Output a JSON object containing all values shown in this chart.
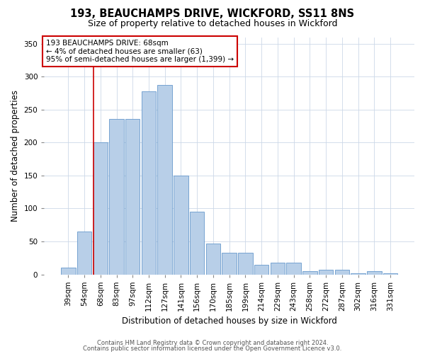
{
  "title1": "193, BEAUCHAMPS DRIVE, WICKFORD, SS11 8NS",
  "title2": "Size of property relative to detached houses in Wickford",
  "xlabel": "Distribution of detached houses by size in Wickford",
  "ylabel": "Number of detached properties",
  "categories": [
    "39sqm",
    "54sqm",
    "68sqm",
    "83sqm",
    "97sqm",
    "112sqm",
    "127sqm",
    "141sqm",
    "156sqm",
    "170sqm",
    "185sqm",
    "199sqm",
    "214sqm",
    "229sqm",
    "243sqm",
    "258sqm",
    "272sqm",
    "287sqm",
    "302sqm",
    "316sqm",
    "331sqm"
  ],
  "values": [
    10,
    65,
    200,
    236,
    236,
    278,
    288,
    150,
    95,
    47,
    33,
    33,
    15,
    18,
    18,
    5,
    7,
    7,
    2,
    5,
    2
  ],
  "bar_color": "#b8cfe8",
  "bar_edge_color": "#6699cc",
  "highlight_index": 2,
  "highlight_color": "#cc0000",
  "annotation_text": "193 BEAUCHAMPS DRIVE: 68sqm\n← 4% of detached houses are smaller (63)\n95% of semi-detached houses are larger (1,399) →",
  "annotation_box_color": "#ffffff",
  "annotation_box_edge_color": "#cc0000",
  "ylim": [
    0,
    360
  ],
  "yticks": [
    0,
    50,
    100,
    150,
    200,
    250,
    300,
    350
  ],
  "footer1": "Contains HM Land Registry data © Crown copyright and database right 2024.",
  "footer2": "Contains public sector information licensed under the Open Government Licence v3.0.",
  "bg_color": "#ffffff",
  "grid_color": "#ccd8e8",
  "title_fontsize": 10.5,
  "subtitle_fontsize": 9,
  "axis_label_fontsize": 8.5,
  "tick_fontsize": 7.5,
  "footer_fontsize": 6,
  "annotation_fontsize": 7.5
}
